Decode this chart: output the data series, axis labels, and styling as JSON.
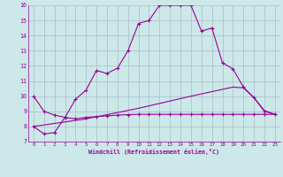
{
  "xlabel": "Windchill (Refroidissement éolien,°C)",
  "bg_color": "#cce8e8",
  "grid_color": "#aabbcc",
  "line_color": "#990099",
  "x_min": 0,
  "x_max": 23,
  "y_min": 7,
  "y_max": 16,
  "line1_x": [
    0,
    1,
    2,
    3,
    4,
    5,
    6,
    7,
    8,
    9,
    10,
    11,
    12,
    13,
    14,
    15,
    16,
    17,
    18,
    19,
    20,
    21,
    22,
    23
  ],
  "line1_y": [
    10.0,
    9.0,
    8.75,
    8.6,
    9.8,
    10.4,
    11.7,
    11.5,
    11.85,
    13.0,
    14.8,
    15.0,
    16.0,
    16.0,
    16.0,
    16.0,
    14.3,
    14.5,
    12.2,
    11.8,
    10.6,
    9.9,
    9.0,
    8.8
  ],
  "line2_x": [
    0,
    1,
    2,
    3,
    4,
    5,
    6,
    7,
    8,
    9,
    10,
    11,
    12,
    13,
    14,
    15,
    16,
    17,
    18,
    19,
    20,
    21,
    22,
    23
  ],
  "line2_y": [
    8.0,
    7.5,
    7.6,
    8.6,
    8.5,
    8.6,
    8.65,
    8.7,
    8.75,
    8.78,
    8.8,
    8.8,
    8.8,
    8.8,
    8.8,
    8.8,
    8.8,
    8.8,
    8.8,
    8.8,
    8.8,
    8.8,
    8.8,
    8.8
  ],
  "line3_x": [
    0,
    5,
    10,
    15,
    19,
    20,
    21,
    22,
    23
  ],
  "line3_y": [
    8.0,
    8.5,
    9.2,
    10.0,
    10.6,
    10.55,
    9.9,
    9.05,
    8.8
  ],
  "yticks": [
    7,
    8,
    9,
    10,
    11,
    12,
    13,
    14,
    15,
    16
  ],
  "xticks": [
    0,
    1,
    2,
    3,
    4,
    5,
    6,
    7,
    8,
    9,
    10,
    11,
    12,
    13,
    14,
    15,
    16,
    17,
    18,
    19,
    20,
    21,
    22,
    23
  ]
}
